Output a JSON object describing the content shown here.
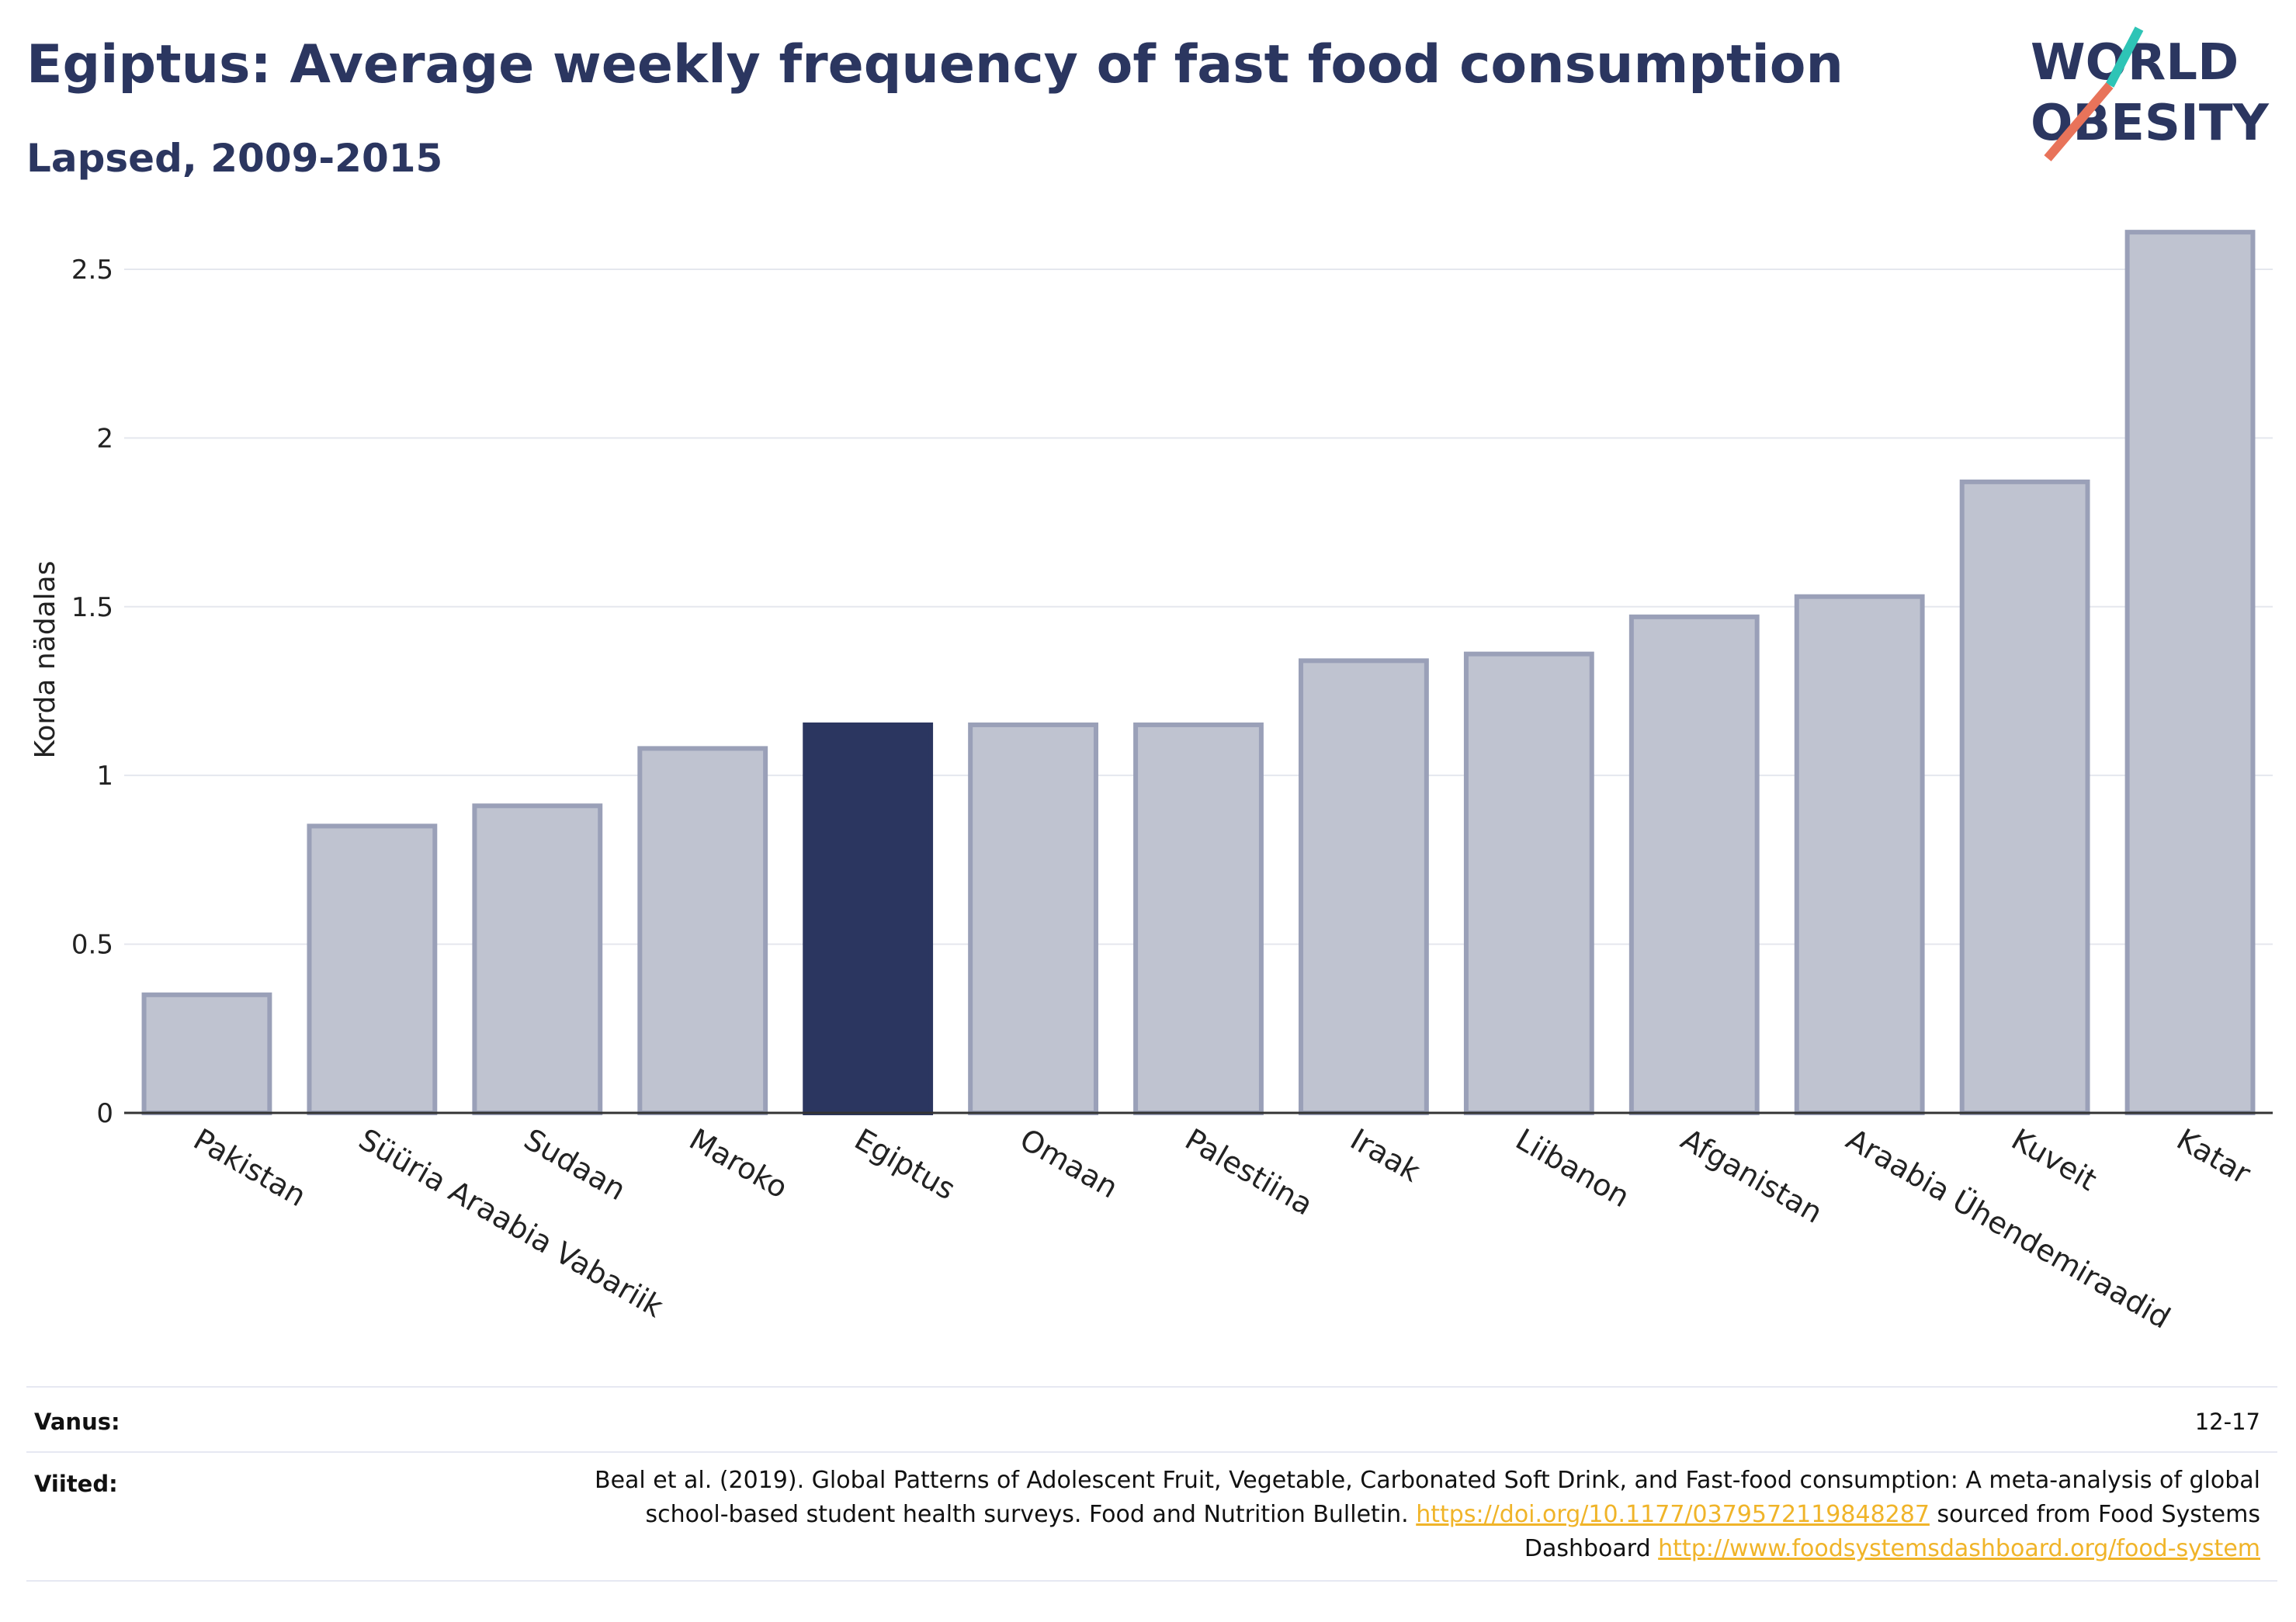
{
  "header": {
    "title": "Egiptus: Average weekly frequency of fast food consumption",
    "subtitle": "Lapsed, 2009-2015"
  },
  "logo": {
    "line1": "WORLD",
    "line2": "OBESITY",
    "accent_teal": "#2ec4b6",
    "accent_coral": "#e8735a"
  },
  "colors": {
    "bar_default": "#bfc3d0",
    "bar_border": "#9aa0b8",
    "bar_highlight": "#2b3660",
    "grid": "#e5e7ee",
    "axis": "#333333"
  },
  "chart_data": {
    "type": "bar",
    "ylabel": "Korda nädalas",
    "xlabel": "",
    "ylim": [
      0,
      2.7
    ],
    "yticks": [
      0,
      0.5,
      1,
      1.5,
      2,
      2.5
    ],
    "ytick_labels": [
      "0",
      "0.5",
      "1",
      "1.5",
      "2",
      "2.5"
    ],
    "categories": [
      "Pakistan",
      "Süüria Araabia Vabariik",
      "Sudaan",
      "Maroko",
      "Egiptus",
      "Omaan",
      "Palestiina",
      "Iraak",
      "Liibanon",
      "Afganistan",
      "Araabia Ühendemiraadid",
      "Kuveit",
      "Katar"
    ],
    "values": [
      0.35,
      0.85,
      0.91,
      1.08,
      1.15,
      1.15,
      1.15,
      1.34,
      1.36,
      1.47,
      1.53,
      1.87,
      2.61
    ],
    "highlight": "Egiptus",
    "grid": true
  },
  "footer": {
    "age_label": "Vanus:",
    "age_value": "12-17",
    "refs_label": "Viited:",
    "refs_text_1": "Beal et al. (2019). Global Patterns of Adolescent Fruit, Vegetable, Carbonated Soft Drink, and Fast-food consumption: A meta-analysis of global school-based student health surveys. Food and Nutrition Bulletin. ",
    "refs_link_1": "https://doi.org/10.1177/0379572119848287",
    "refs_text_2": " sourced from Food Systems Dashboard ",
    "refs_link_2": "http://www.foodsystemsdashboard.org/food-system"
  }
}
